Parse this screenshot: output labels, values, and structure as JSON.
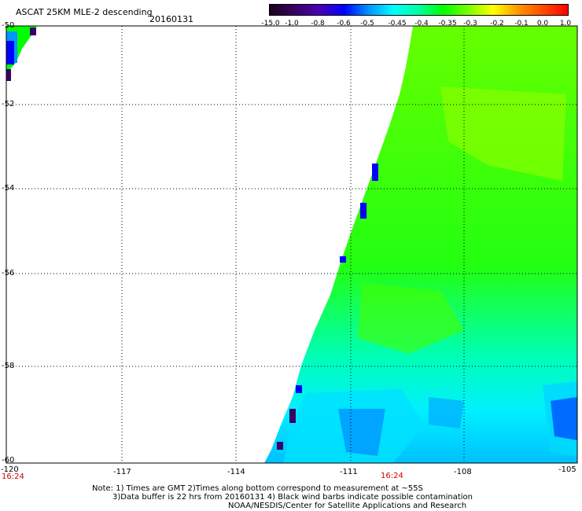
{
  "header": {
    "title": "ASCAT 25KM MLE-2 descending",
    "date": "20160131"
  },
  "colorbar": {
    "labels": [
      "-15.0",
      "-1.0",
      "-0.8",
      "-0.6",
      "-0.5",
      "-0.45",
      "-0.4",
      "-0.35",
      "-0.3",
      "-0.2",
      "-0.1",
      "0.0",
      "1.0"
    ],
    "colors": [
      "#1a001a",
      "#3a0066",
      "#4b00b4",
      "#0000ff",
      "#0096ff",
      "#00ffff",
      "#00ffa0",
      "#00ff00",
      "#7dff00",
      "#ffff00",
      "#ff9600",
      "#ff4b00",
      "#ff0000"
    ]
  },
  "map": {
    "lat_labels": [
      "-50",
      "-52",
      "-54",
      "-56",
      "-58",
      "-60"
    ],
    "lon_labels": [
      "-120",
      "-117",
      "-114",
      "-111",
      "-108",
      "-105"
    ],
    "time_labels": [
      "16:24",
      "16:24"
    ],
    "lat_range": [
      -60,
      -50
    ],
    "lon_range": [
      -120,
      -105
    ]
  },
  "notes": {
    "line1": "Note: 1) Times are GMT 2)Times along bottom correspond to measurement at ~55S",
    "line2": "3)Data buffer is 22 hrs from 20160131 4) Black wind barbs indicate possible contamination",
    "line3": "NOAA/NESDIS/Center for Satellite Applications and Research"
  }
}
